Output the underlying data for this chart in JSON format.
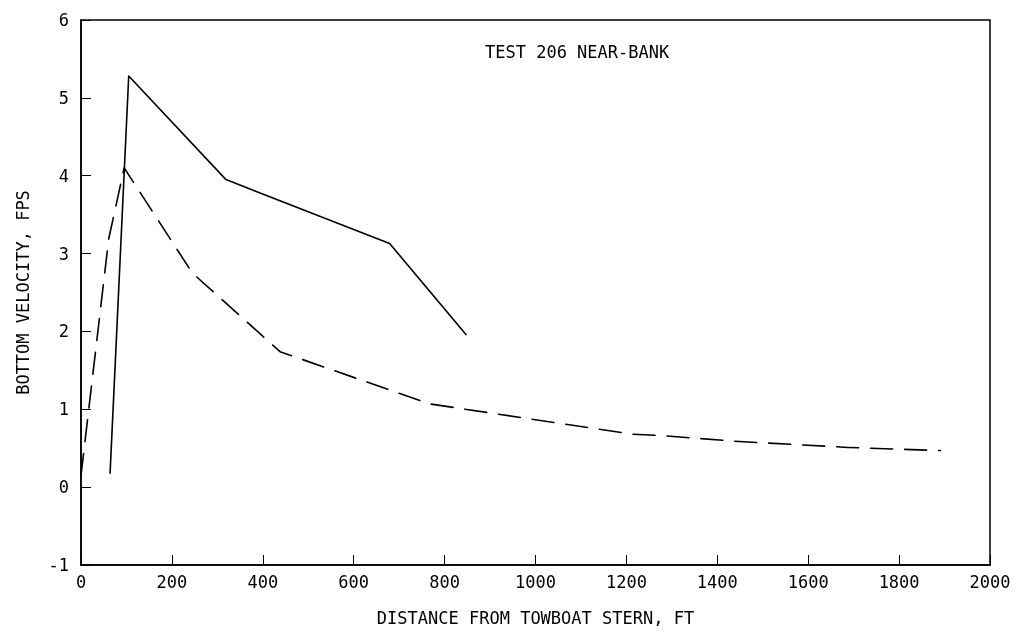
{
  "chart_data": {
    "type": "line",
    "title": "TEST 206 NEAR-BANK",
    "xlabel": "DISTANCE FROM TOWBOAT STERN, FT",
    "ylabel": "BOTTOM VELOCITY, FPS",
    "series": [
      {
        "color": "#000000",
        "line_style": "solid",
        "x": [
          64,
          105,
          319,
          679,
          847
        ],
        "values": [
          0.18,
          5.28,
          3.95,
          3.13,
          1.96
        ]
      },
      {
        "color": "#000000",
        "line_style": "dashed",
        "x": [
          0,
          61,
          95,
          245,
          438,
          766,
          1214,
          1282,
          1438,
          1687,
          1891
        ],
        "values": [
          0.15,
          3.19,
          4.1,
          2.75,
          1.74,
          1.07,
          0.68,
          0.66,
          0.59,
          0.51,
          0.47
        ]
      }
    ],
    "xlim": [
      0,
      2000
    ],
    "xticks": [
      0,
      200,
      400,
      600,
      800,
      1000,
      1200,
      1400,
      1600,
      1800,
      2000
    ],
    "ylim": [
      -1,
      6
    ],
    "yticks": [
      -1,
      0,
      1,
      2,
      3,
      4,
      5,
      6
    ],
    "grid": false,
    "marker": "none"
  }
}
